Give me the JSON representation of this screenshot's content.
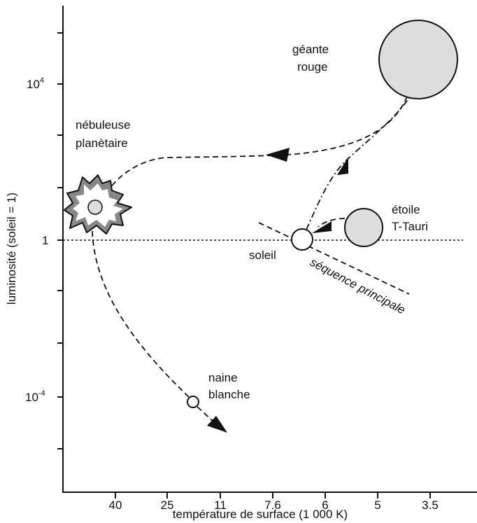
{
  "axes": {
    "y_title": "luminosité (soleil = 1)",
    "x_title": "température de surface (1 000 K)",
    "y_labels": [
      {
        "base": "10",
        "exp": "4"
      },
      {
        "base": "1"
      },
      {
        "base": "10",
        "exp": "-4"
      }
    ],
    "x_labels": [
      "40",
      "25",
      "11",
      "7.6",
      "6",
      "5",
      "3.5"
    ]
  },
  "labels": {
    "red_giant": [
      "géante",
      "rouge"
    ],
    "nebula": [
      "nébuleuse",
      "planètaire"
    ],
    "t_tauri": [
      "étoile",
      "T-Tauri"
    ],
    "sun": "soleil",
    "main_sequence": "séquence principale",
    "white_dwarf": [
      "naine",
      "blanche"
    ]
  }
}
